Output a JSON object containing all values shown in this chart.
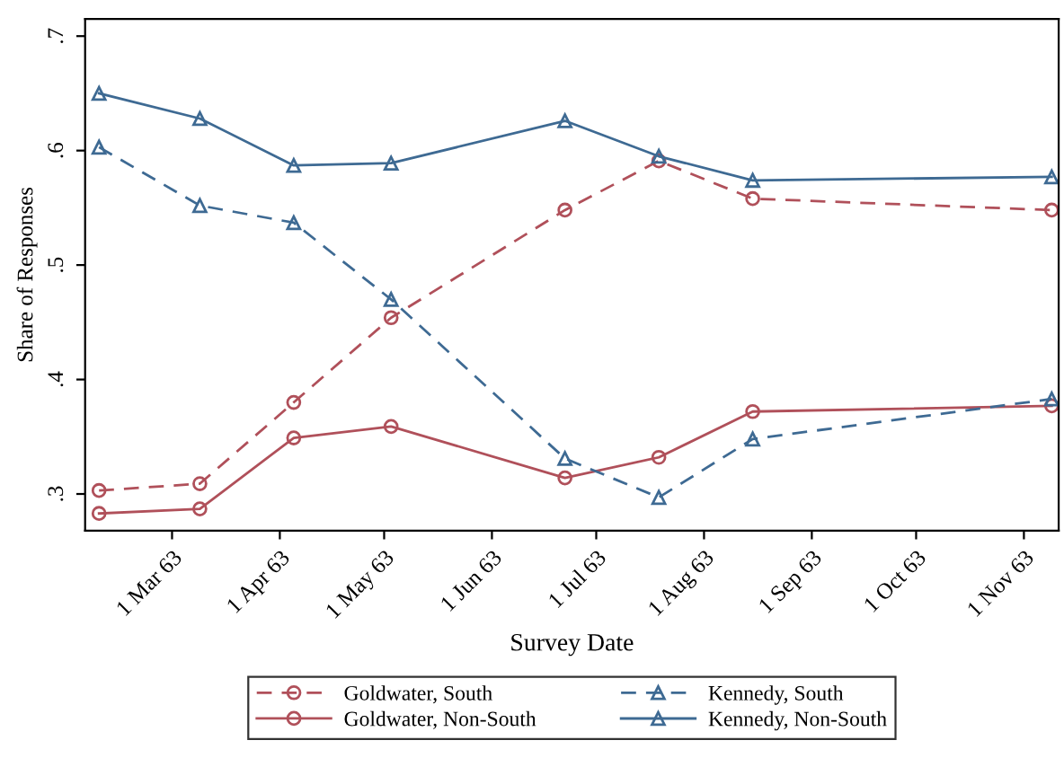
{
  "chart_data": {
    "type": "line",
    "xlabel": "Survey Date",
    "ylabel": "Share of Responses",
    "x": [
      "1963-02-08",
      "1963-03-09",
      "1963-04-05",
      "1963-05-03",
      "1963-06-22",
      "1963-07-19",
      "1963-08-15",
      "1963-11-09"
    ],
    "series": [
      {
        "name": "Goldwater, South",
        "color": "#b0505a",
        "marker": "circle",
        "line_style": "dashed",
        "values": [
          0.303,
          0.309,
          0.38,
          0.454,
          0.548,
          0.591,
          0.558,
          0.548
        ]
      },
      {
        "name": "Goldwater, Non-South",
        "color": "#b0505a",
        "marker": "circle",
        "line_style": "solid",
        "values": [
          0.283,
          0.287,
          0.349,
          0.359,
          0.314,
          0.332,
          0.372,
          0.377
        ]
      },
      {
        "name": "Kennedy, South",
        "color": "#3e6a93",
        "marker": "triangle",
        "line_style": "dashed",
        "values": [
          0.603,
          0.552,
          0.537,
          0.47,
          0.331,
          0.297,
          0.348,
          0.383
        ]
      },
      {
        "name": "Kennedy, Non-South",
        "color": "#3e6a93",
        "marker": "triangle",
        "line_style": "solid",
        "values": [
          0.65,
          0.628,
          0.587,
          0.589,
          0.626,
          0.595,
          0.574,
          0.577
        ]
      }
    ],
    "xlim": [
      "1963-02-04",
      "1963-11-11"
    ],
    "xticks": [
      {
        "value": "1963-03-01",
        "label": "1 Mar 63"
      },
      {
        "value": "1963-04-01",
        "label": "1 Apr 63"
      },
      {
        "value": "1963-05-01",
        "label": "1 May 63"
      },
      {
        "value": "1963-06-01",
        "label": "1 Jun 63"
      },
      {
        "value": "1963-07-01",
        "label": "1 Jul 63"
      },
      {
        "value": "1963-08-01",
        "label": "1 Aug 63"
      },
      {
        "value": "1963-09-01",
        "label": "1 Sep 63"
      },
      {
        "value": "1963-10-01",
        "label": "1 Oct 63"
      },
      {
        "value": "1963-11-01",
        "label": "1 Nov 63"
      }
    ],
    "ylim": [
      0.268,
      0.715
    ],
    "yticks": [
      {
        "value": 0.3,
        "label": ".3"
      },
      {
        "value": 0.4,
        "label": ".4"
      },
      {
        "value": 0.5,
        "label": ".5"
      },
      {
        "value": 0.6,
        "label": ".6"
      },
      {
        "value": 0.7,
        "label": ".7"
      }
    ],
    "grid": false,
    "legend": "bottom"
  }
}
